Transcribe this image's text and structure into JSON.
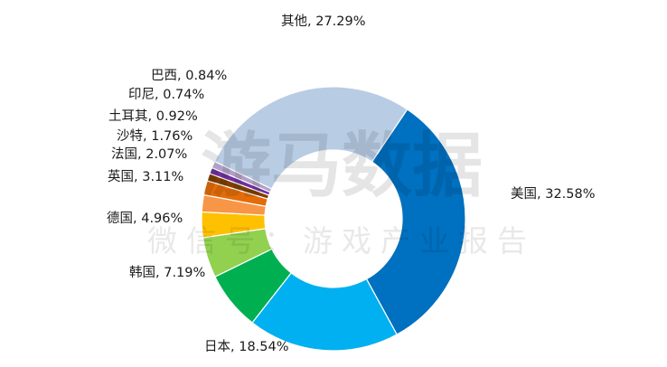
{
  "chart_data": {
    "type": "pie",
    "donut": true,
    "start_angle_deg": 34,
    "direction": "clockwise",
    "title": "",
    "slices": [
      {
        "name": "美国",
        "value": 32.58,
        "label": "美国, 32.58%",
        "color": "#0070c0"
      },
      {
        "name": "日本",
        "value": 18.54,
        "label": "日本, 18.54%",
        "color": "#00b0f0"
      },
      {
        "name": "韩国",
        "value": 7.19,
        "label": "韩国, 7.19%",
        "color": "#00b050"
      },
      {
        "name": "德国",
        "value": 4.96,
        "label": "德国, 4.96%",
        "color": "#92d050"
      },
      {
        "name": "英国",
        "value": 3.11,
        "label": "英国, 3.11%",
        "color": "#ffc000"
      },
      {
        "name": "法国",
        "value": 2.07,
        "label": "法国, 2.07%",
        "color": "#f79646"
      },
      {
        "name": "沙特",
        "value": 1.76,
        "label": "沙特, 1.76%",
        "color": "#e36c09"
      },
      {
        "name": "土耳其",
        "value": 0.92,
        "label": "土耳其, 0.92%",
        "color": "#7f3f00"
      },
      {
        "name": "印尼",
        "value": 0.74,
        "label": "印尼, 0.74%",
        "color": "#7030a0"
      },
      {
        "name": "巴西",
        "value": 0.84,
        "label": "巴西, 0.84%",
        "color": "#b1a0c7"
      },
      {
        "name": "其他",
        "value": 27.29,
        "label": "其他, 27.29%",
        "color": "#b8cce4"
      }
    ]
  },
  "watermark": {
    "main": "游马数据",
    "sub": "微信号：游戏产业报告"
  }
}
